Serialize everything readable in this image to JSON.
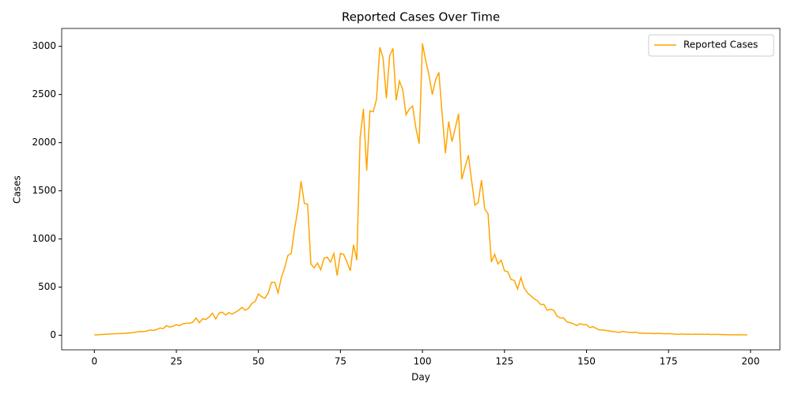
{
  "chart_data": {
    "type": "line",
    "title": "Reported Cases Over Time",
    "x_label": "Day",
    "y_label": "Cases",
    "x": [
      0,
      1,
      2,
      3,
      4,
      5,
      6,
      7,
      8,
      9,
      10,
      11,
      12,
      13,
      14,
      15,
      16,
      17,
      18,
      19,
      20,
      21,
      22,
      23,
      24,
      25,
      26,
      27,
      28,
      29,
      30,
      31,
      32,
      33,
      34,
      35,
      36,
      37,
      38,
      39,
      40,
      41,
      42,
      43,
      44,
      45,
      46,
      47,
      48,
      49,
      50,
      51,
      52,
      53,
      54,
      55,
      56,
      57,
      58,
      59,
      60,
      61,
      62,
      63,
      64,
      65,
      66,
      67,
      68,
      69,
      70,
      71,
      72,
      73,
      74,
      75,
      76,
      77,
      78,
      79,
      80,
      81,
      82,
      83,
      84,
      85,
      86,
      87,
      88,
      89,
      90,
      91,
      92,
      93,
      94,
      95,
      96,
      97,
      98,
      99,
      100,
      101,
      102,
      103,
      104,
      105,
      106,
      107,
      108,
      109,
      110,
      111,
      112,
      113,
      114,
      115,
      116,
      117,
      118,
      119,
      120,
      121,
      122,
      123,
      124,
      125,
      126,
      127,
      128,
      129,
      130,
      131,
      132,
      133,
      134,
      135,
      136,
      137,
      138,
      139,
      140,
      141,
      142,
      143,
      144,
      145,
      146,
      147,
      148,
      149,
      150,
      151,
      152,
      153,
      154,
      155,
      156,
      157,
      158,
      159,
      160,
      161,
      162,
      163,
      164,
      165,
      166,
      167,
      168,
      169,
      170,
      171,
      172,
      173,
      174,
      175,
      176,
      177,
      178,
      179,
      180,
      181,
      182,
      183,
      184,
      185,
      186,
      187,
      188,
      189,
      190,
      191,
      192,
      193,
      194,
      195,
      196,
      197,
      198,
      199
    ],
    "series": [
      {
        "name": "Reported Cases",
        "color": "#ffa500",
        "values": [
          5,
          5,
          8,
          10,
          12,
          14,
          15,
          17,
          18,
          20,
          22,
          25,
          28,
          35,
          40,
          38,
          45,
          55,
          50,
          60,
          75,
          70,
          100,
          85,
          95,
          110,
          100,
          120,
          125,
          125,
          135,
          180,
          130,
          170,
          165,
          190,
          230,
          170,
          230,
          240,
          210,
          235,
          220,
          240,
          260,
          290,
          260,
          280,
          330,
          350,
          430,
          400,
          385,
          440,
          550,
          550,
          440,
          600,
          700,
          830,
          850,
          1100,
          1300,
          1600,
          1370,
          1360,
          740,
          700,
          750,
          680,
          800,
          810,
          760,
          850,
          620,
          850,
          840,
          760,
          670,
          940,
          780,
          2050,
          2350,
          1710,
          2330,
          2320,
          2450,
          2990,
          2880,
          2460,
          2900,
          2980,
          2440,
          2640,
          2550,
          2290,
          2350,
          2380,
          2150,
          1990,
          3030,
          2850,
          2700,
          2500,
          2650,
          2730,
          2300,
          1890,
          2220,
          2010,
          2150,
          2300,
          1620,
          1750,
          1870,
          1600,
          1350,
          1380,
          1610,
          1310,
          1260,
          760,
          840,
          740,
          780,
          670,
          660,
          580,
          570,
          480,
          600,
          490,
          440,
          410,
          380,
          360,
          320,
          320,
          260,
          270,
          260,
          200,
          180,
          180,
          140,
          130,
          120,
          100,
          120,
          110,
          110,
          80,
          90,
          70,
          55,
          55,
          50,
          45,
          40,
          35,
          30,
          40,
          35,
          30,
          28,
          32,
          22,
          22,
          20,
          20,
          18,
          18,
          20,
          18,
          15,
          18,
          15,
          12,
          10,
          14,
          10,
          12,
          10,
          12,
          10,
          12,
          10,
          12,
          8,
          10,
          9,
          8,
          7,
          6,
          6,
          5,
          6,
          5,
          5,
          4
        ]
      }
    ],
    "xlim": [
      -9.95,
      208.95
    ],
    "ylim": [
      -151,
      3186
    ],
    "xticks": [
      0,
      25,
      50,
      75,
      100,
      125,
      150,
      175,
      200
    ],
    "yticks": [
      0,
      500,
      1000,
      1500,
      2000,
      2500,
      3000
    ],
    "legend": "upper right"
  }
}
